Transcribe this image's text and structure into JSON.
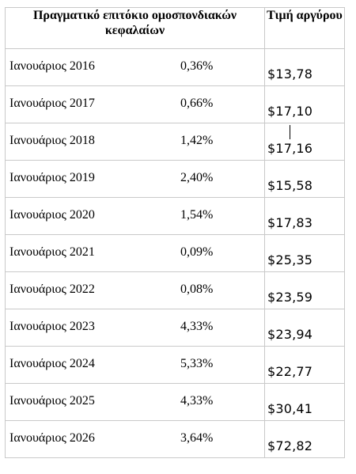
{
  "table": {
    "header_rate": "Πραγματικό επιτόκιο ομοσπονδιακών κεφαλαίων",
    "header_price": "Τιμή αργύρου",
    "rows": [
      {
        "month": "Ιανουάριος 2016",
        "rate": "0,36%",
        "price": "$13,78"
      },
      {
        "month": "Ιανουάριος 2017",
        "rate": "0,66%",
        "price": "$17,10"
      },
      {
        "month": "Ιανουάριος 2018",
        "rate": "1,42%",
        "price": "$17,16"
      },
      {
        "month": "Ιανουάριος 2019",
        "rate": "2,40%",
        "price": "$15,58"
      },
      {
        "month": "Ιανουάριος 2020",
        "rate": "1,54%",
        "price": "$17,83"
      },
      {
        "month": "Ιανουάριος 2021",
        "rate": "0,09%",
        "price": "$25,35"
      },
      {
        "month": "Ιανουάριος 2022",
        "rate": "0,08%",
        "price": "$23,59"
      },
      {
        "month": "Ιανουάριος 2023",
        "rate": "4,33%",
        "price": "$23,94"
      },
      {
        "month": "Ιανουάριος 2024",
        "rate": "5,33%",
        "price": "$22,77"
      },
      {
        "month": "Ιανουάριος 2025",
        "rate": "4,33%",
        "price": "$30,41"
      },
      {
        "month": "Ιανουάριος 2026",
        "rate": "3,64%",
        "price": "$72,82"
      }
    ]
  }
}
